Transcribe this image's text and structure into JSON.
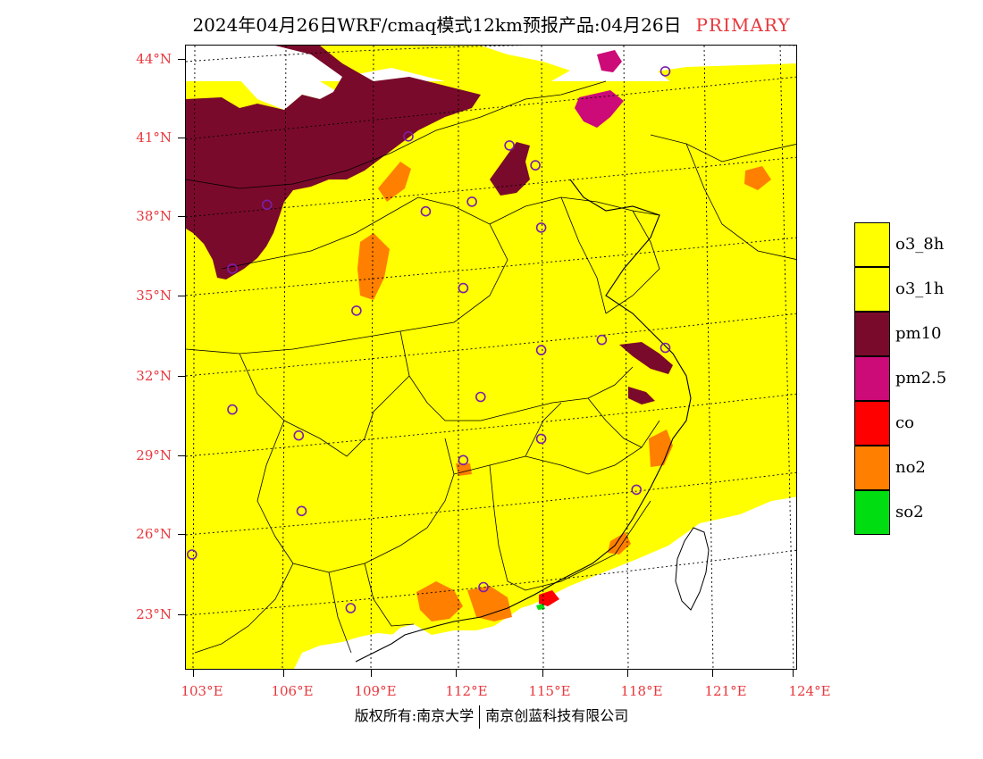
{
  "header": {
    "title": "2024年04月26日WRF/cmaq模式12km预报产品:04月26日",
    "tag": "PRIMARY",
    "tag_color": "#e8383d"
  },
  "map": {
    "lat_labels": [
      "44°N",
      "41°N",
      "38°N",
      "35°N",
      "32°N",
      "29°N",
      "26°N",
      "23°N"
    ],
    "lon_labels": [
      "103°E",
      "106°E",
      "109°E",
      "112°E",
      "115°E",
      "118°E",
      "121°E",
      "124°E"
    ],
    "lat_values": [
      44,
      41,
      38,
      35,
      32,
      29,
      26,
      23
    ],
    "lon_values": [
      103,
      106,
      109,
      112,
      115,
      118,
      121,
      124
    ],
    "label_color": "#e8383d",
    "station_marker_color": "#7a1fa8",
    "stations": [
      {
        "lon": 110.4,
        "lat": 40.8
      },
      {
        "lon": 113.9,
        "lat": 40.3
      },
      {
        "lon": 114.8,
        "lat": 39.5
      },
      {
        "lon": 105.5,
        "lat": 38.4
      },
      {
        "lon": 111.0,
        "lat": 37.9
      },
      {
        "lon": 112.6,
        "lat": 38.2
      },
      {
        "lon": 115.0,
        "lat": 37.1
      },
      {
        "lon": 104.3,
        "lat": 36.0
      },
      {
        "lon": 112.3,
        "lat": 34.9
      },
      {
        "lon": 108.6,
        "lat": 34.2
      },
      {
        "lon": 117.1,
        "lat": 32.7
      },
      {
        "lon": 115.0,
        "lat": 32.4
      },
      {
        "lon": 119.3,
        "lat": 32.3
      },
      {
        "lon": 104.3,
        "lat": 30.6
      },
      {
        "lon": 112.9,
        "lat": 30.7
      },
      {
        "lon": 106.6,
        "lat": 29.5
      },
      {
        "lon": 115.0,
        "lat": 29.0
      },
      {
        "lon": 112.3,
        "lat": 28.3
      },
      {
        "lon": 106.7,
        "lat": 26.6
      },
      {
        "lon": 118.3,
        "lat": 26.9
      },
      {
        "lon": 102.9,
        "lat": 25.1
      },
      {
        "lon": 113.0,
        "lat": 23.4
      },
      {
        "lon": 108.4,
        "lat": 22.8
      },
      {
        "lon": 119.3,
        "lat": 42.9
      }
    ]
  },
  "legend": {
    "items": [
      {
        "label": "o3_8h",
        "color": "#ffff00"
      },
      {
        "label": "o3_1h",
        "color": "#ffff00"
      },
      {
        "label": "pm10",
        "color": "#7a0a2b"
      },
      {
        "label": "pm2.5",
        "color": "#cc0a78"
      },
      {
        "label": "co",
        "color": "#ff0000"
      },
      {
        "label": "no2",
        "color": "#ff7f00"
      },
      {
        "label": "so2",
        "color": "#00dd11"
      }
    ]
  },
  "footer": {
    "left": "版权所有:南京大学",
    "right": "南京创蓝科技有限公司"
  }
}
